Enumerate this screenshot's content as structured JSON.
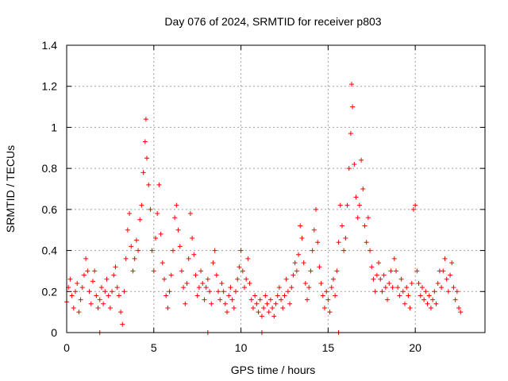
{
  "chart_data": {
    "type": "scatter",
    "title": "Day 076 of 2024, SRMTID for receiver p803",
    "xlabel": "GPS time / hours",
    "ylabel": "SRMTID / TECUs",
    "xlim": [
      0,
      24
    ],
    "ylim": [
      0,
      1.4
    ],
    "x_ticks": [
      0,
      5,
      10,
      15,
      20
    ],
    "y_ticks": [
      0,
      0.2,
      0.4,
      0.6,
      0.8,
      1,
      1.2,
      1.4
    ],
    "x_tick_labels": [
      "0",
      "5",
      "10",
      "15",
      "20"
    ],
    "y_tick_labels": [
      "0",
      "0.2",
      "0.4",
      "0.6",
      "0.8",
      "1",
      "1.2",
      "1.4"
    ],
    "grid": true,
    "marker": "+",
    "color": "#ff0000",
    "series": [
      {
        "name": "SRMTID",
        "points": [
          [
            0.0,
            0.15
          ],
          [
            0.1,
            0.22
          ],
          [
            0.2,
            0.26
          ],
          [
            0.3,
            0.18
          ],
          [
            0.4,
            0.12
          ],
          [
            0.5,
            0.2
          ],
          [
            0.6,
            0.24
          ],
          [
            0.7,
            0.1
          ],
          [
            0.8,
            0.16
          ],
          [
            0.9,
            0.22
          ],
          [
            1.0,
            0.28
          ],
          [
            1.1,
            0.36
          ],
          [
            1.2,
            0.3
          ],
          [
            1.3,
            0.2
          ],
          [
            1.4,
            0.14
          ],
          [
            1.5,
            0.25
          ],
          [
            1.6,
            0.3
          ],
          [
            1.7,
            0.18
          ],
          [
            1.8,
            0.12
          ],
          [
            1.9,
            0.16
          ],
          [
            2.0,
            0.22
          ],
          [
            2.1,
            0.14
          ],
          [
            2.2,
            0.2
          ],
          [
            2.3,
            0.26
          ],
          [
            2.4,
            0.18
          ],
          [
            2.5,
            0.12
          ],
          [
            2.6,
            0.2
          ],
          [
            2.7,
            0.28
          ],
          [
            2.8,
            0.32
          ],
          [
            2.9,
            0.22
          ],
          [
            3.0,
            0.18
          ],
          [
            3.1,
            0.1
          ],
          [
            3.2,
            0.04
          ],
          [
            3.3,
            0.2
          ],
          [
            3.4,
            0.36
          ],
          [
            3.5,
            0.5
          ],
          [
            3.6,
            0.58
          ],
          [
            3.7,
            0.42
          ],
          [
            3.8,
            0.3
          ],
          [
            3.9,
            0.36
          ],
          [
            4.0,
            0.45
          ],
          [
            4.1,
            0.4
          ],
          [
            4.2,
            0.55
          ],
          [
            4.3,
            0.62
          ],
          [
            4.4,
            0.78
          ],
          [
            4.5,
            0.93
          ],
          [
            4.55,
            1.04
          ],
          [
            4.6,
            0.85
          ],
          [
            4.7,
            0.72
          ],
          [
            4.8,
            0.6
          ],
          [
            4.9,
            0.4
          ],
          [
            5.0,
            0.3
          ],
          [
            5.1,
            0.46
          ],
          [
            5.2,
            0.58
          ],
          [
            5.3,
            0.72
          ],
          [
            5.4,
            0.48
          ],
          [
            5.5,
            0.34
          ],
          [
            5.6,
            0.26
          ],
          [
            5.7,
            0.18
          ],
          [
            5.8,
            0.12
          ],
          [
            5.9,
            0.2
          ],
          [
            6.0,
            0.28
          ],
          [
            6.1,
            0.4
          ],
          [
            6.2,
            0.56
          ],
          [
            6.3,
            0.62
          ],
          [
            6.4,
            0.5
          ],
          [
            6.5,
            0.42
          ],
          [
            6.6,
            0.3
          ],
          [
            6.7,
            0.22
          ],
          [
            6.8,
            0.14
          ],
          [
            6.9,
            0.24
          ],
          [
            7.0,
            0.36
          ],
          [
            7.1,
            0.58
          ],
          [
            7.2,
            0.46
          ],
          [
            7.3,
            0.38
          ],
          [
            7.4,
            0.28
          ],
          [
            7.5,
            0.18
          ],
          [
            7.6,
            0.22
          ],
          [
            7.7,
            0.3
          ],
          [
            7.8,
            0.24
          ],
          [
            7.9,
            0.16
          ],
          [
            8.0,
            0.22
          ],
          [
            8.1,
            0.26
          ],
          [
            8.2,
            0.2
          ],
          [
            8.3,
            0.14
          ],
          [
            8.4,
            0.34
          ],
          [
            8.5,
            0.4
          ],
          [
            8.6,
            0.28
          ],
          [
            8.7,
            0.2
          ],
          [
            8.8,
            0.16
          ],
          [
            8.9,
            0.24
          ],
          [
            9.0,
            0.2
          ],
          [
            9.1,
            0.14
          ],
          [
            9.2,
            0.1
          ],
          [
            9.3,
            0.18
          ],
          [
            9.4,
            0.22
          ],
          [
            9.5,
            0.16
          ],
          [
            9.6,
            0.12
          ],
          [
            9.7,
            0.2
          ],
          [
            9.8,
            0.26
          ],
          [
            9.9,
            0.32
          ],
          [
            10.0,
            0.4
          ],
          [
            10.1,
            0.3
          ],
          [
            10.2,
            0.22
          ],
          [
            10.3,
            0.26
          ],
          [
            10.4,
            0.36
          ],
          [
            10.5,
            0.24
          ],
          [
            10.6,
            0.16
          ],
          [
            10.7,
            0.12
          ],
          [
            10.8,
            0.18
          ],
          [
            10.9,
            0.14
          ],
          [
            11.0,
            0.1
          ],
          [
            11.1,
            0.16
          ],
          [
            11.2,
            0.08
          ],
          [
            11.3,
            0.12
          ],
          [
            11.4,
            0.18
          ],
          [
            11.5,
            0.14
          ],
          [
            11.6,
            0.1
          ],
          [
            11.7,
            0.16
          ],
          [
            11.8,
            0.12
          ],
          [
            11.9,
            0.08
          ],
          [
            12.0,
            0.14
          ],
          [
            12.1,
            0.18
          ],
          [
            12.2,
            0.22
          ],
          [
            12.3,
            0.16
          ],
          [
            12.4,
            0.12
          ],
          [
            12.5,
            0.18
          ],
          [
            12.6,
            0.26
          ],
          [
            12.7,
            0.2
          ],
          [
            12.8,
            0.14
          ],
          [
            12.9,
            0.22
          ],
          [
            13.0,
            0.28
          ],
          [
            13.1,
            0.34
          ],
          [
            13.2,
            0.3
          ],
          [
            13.3,
            0.38
          ],
          [
            13.4,
            0.52
          ],
          [
            13.5,
            0.46
          ],
          [
            13.6,
            0.34
          ],
          [
            13.7,
            0.24
          ],
          [
            13.8,
            0.16
          ],
          [
            13.9,
            0.22
          ],
          [
            14.0,
            0.3
          ],
          [
            14.1,
            0.4
          ],
          [
            14.2,
            0.5
          ],
          [
            14.3,
            0.6
          ],
          [
            14.4,
            0.44
          ],
          [
            14.5,
            0.32
          ],
          [
            14.6,
            0.24
          ],
          [
            14.7,
            0.18
          ],
          [
            14.8,
            0.12
          ],
          [
            14.9,
            0.2
          ],
          [
            15.0,
            0.16
          ],
          [
            15.1,
            0.1
          ],
          [
            15.2,
            0.22
          ],
          [
            15.3,
            0.26
          ],
          [
            15.4,
            0.18
          ],
          [
            15.5,
            0.3
          ],
          [
            15.6,
            0.44
          ],
          [
            15.7,
            0.62
          ],
          [
            15.8,
            0.52
          ],
          [
            15.9,
            0.4
          ],
          [
            16.0,
            0.46
          ],
          [
            16.1,
            0.62
          ],
          [
            16.2,
            0.8
          ],
          [
            16.3,
            0.97
          ],
          [
            16.35,
            1.21
          ],
          [
            16.4,
            1.1
          ],
          [
            16.5,
            0.82
          ],
          [
            16.6,
            0.66
          ],
          [
            16.7,
            0.56
          ],
          [
            16.8,
            0.62
          ],
          [
            16.9,
            0.84
          ],
          [
            17.0,
            0.7
          ],
          [
            17.1,
            0.52
          ],
          [
            17.2,
            0.44
          ],
          [
            17.3,
            0.56
          ],
          [
            17.4,
            0.4
          ],
          [
            17.5,
            0.32
          ],
          [
            17.6,
            0.26
          ],
          [
            17.7,
            0.2
          ],
          [
            17.8,
            0.28
          ],
          [
            17.9,
            0.34
          ],
          [
            18.0,
            0.26
          ],
          [
            18.1,
            0.2
          ],
          [
            18.2,
            0.28
          ],
          [
            18.3,
            0.22
          ],
          [
            18.4,
            0.16
          ],
          [
            18.5,
            0.24
          ],
          [
            18.6,
            0.3
          ],
          [
            18.7,
            0.22
          ],
          [
            18.8,
            0.36
          ],
          [
            18.9,
            0.3
          ],
          [
            19.0,
            0.22
          ],
          [
            19.1,
            0.18
          ],
          [
            19.2,
            0.26
          ],
          [
            19.3,
            0.2
          ],
          [
            19.4,
            0.14
          ],
          [
            19.5,
            0.22
          ],
          [
            19.6,
            0.18
          ],
          [
            19.7,
            0.12
          ],
          [
            19.8,
            0.24
          ],
          [
            19.9,
            0.6
          ],
          [
            20.0,
            0.62
          ],
          [
            20.1,
            0.3
          ],
          [
            20.2,
            0.24
          ],
          [
            20.3,
            0.18
          ],
          [
            20.4,
            0.22
          ],
          [
            20.5,
            0.16
          ],
          [
            20.6,
            0.2
          ],
          [
            20.7,
            0.14
          ],
          [
            20.8,
            0.18
          ],
          [
            20.9,
            0.12
          ],
          [
            21.0,
            0.16
          ],
          [
            21.1,
            0.2
          ],
          [
            21.2,
            0.14
          ],
          [
            21.3,
            0.24
          ],
          [
            21.4,
            0.3
          ],
          [
            21.5,
            0.22
          ],
          [
            21.6,
            0.3
          ],
          [
            21.7,
            0.36
          ],
          [
            21.8,
            0.26
          ],
          [
            21.9,
            0.2
          ],
          [
            22.0,
            0.28
          ],
          [
            22.1,
            0.34
          ],
          [
            22.2,
            0.22
          ],
          [
            22.3,
            0.16
          ],
          [
            22.4,
            0.2
          ],
          [
            22.5,
            0.12
          ],
          [
            22.6,
            0.1
          ],
          [
            1.9,
            0.0
          ],
          [
            8.1,
            0.0
          ],
          [
            11.2,
            0.0
          ],
          [
            15.6,
            0.0
          ]
        ]
      }
    ]
  }
}
